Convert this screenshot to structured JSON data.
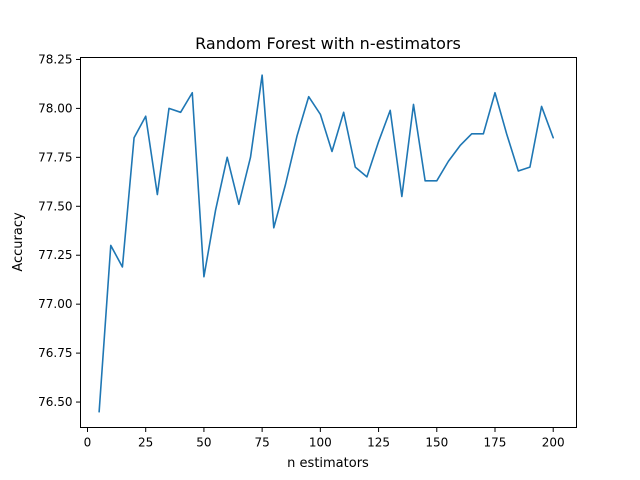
{
  "chart_data": {
    "type": "line",
    "title": "Random Forest with n-estimators",
    "xlabel": "n estimators",
    "ylabel": "Accuracy",
    "xlim": [
      -3,
      210
    ],
    "ylim": [
      76.37,
      78.26
    ],
    "xticks": [
      0,
      25,
      50,
      75,
      100,
      125,
      150,
      175,
      200
    ],
    "xtick_labels": [
      "0",
      "25",
      "50",
      "75",
      "100",
      "125",
      "150",
      "175",
      "200"
    ],
    "yticks": [
      76.5,
      76.75,
      77.0,
      77.25,
      77.5,
      77.75,
      78.0,
      78.25
    ],
    "ytick_labels": [
      "76.50",
      "76.75",
      "77.00",
      "77.25",
      "77.50",
      "77.75",
      "78.00",
      "78.25"
    ],
    "grid": false,
    "series": [
      {
        "color": "#1f77b4",
        "x": [
          5,
          10,
          15,
          20,
          25,
          30,
          35,
          40,
          45,
          50,
          55,
          60,
          65,
          70,
          75,
          80,
          85,
          90,
          95,
          100,
          105,
          110,
          115,
          120,
          125,
          130,
          135,
          140,
          145,
          150,
          155,
          160,
          165,
          170,
          175,
          180,
          185,
          190,
          195,
          200
        ],
        "values": [
          76.45,
          77.3,
          77.19,
          77.85,
          77.96,
          77.56,
          78.0,
          77.98,
          78.08,
          77.14,
          77.48,
          77.75,
          77.51,
          77.75,
          78.17,
          77.39,
          77.61,
          77.86,
          78.06,
          77.97,
          77.78,
          77.98,
          77.7,
          77.65,
          77.83,
          77.99,
          77.55,
          78.02,
          77.63,
          77.63,
          77.73,
          77.81,
          77.87,
          77.87,
          78.08,
          77.87,
          77.68,
          77.7,
          78.01,
          77.85
        ]
      }
    ]
  }
}
